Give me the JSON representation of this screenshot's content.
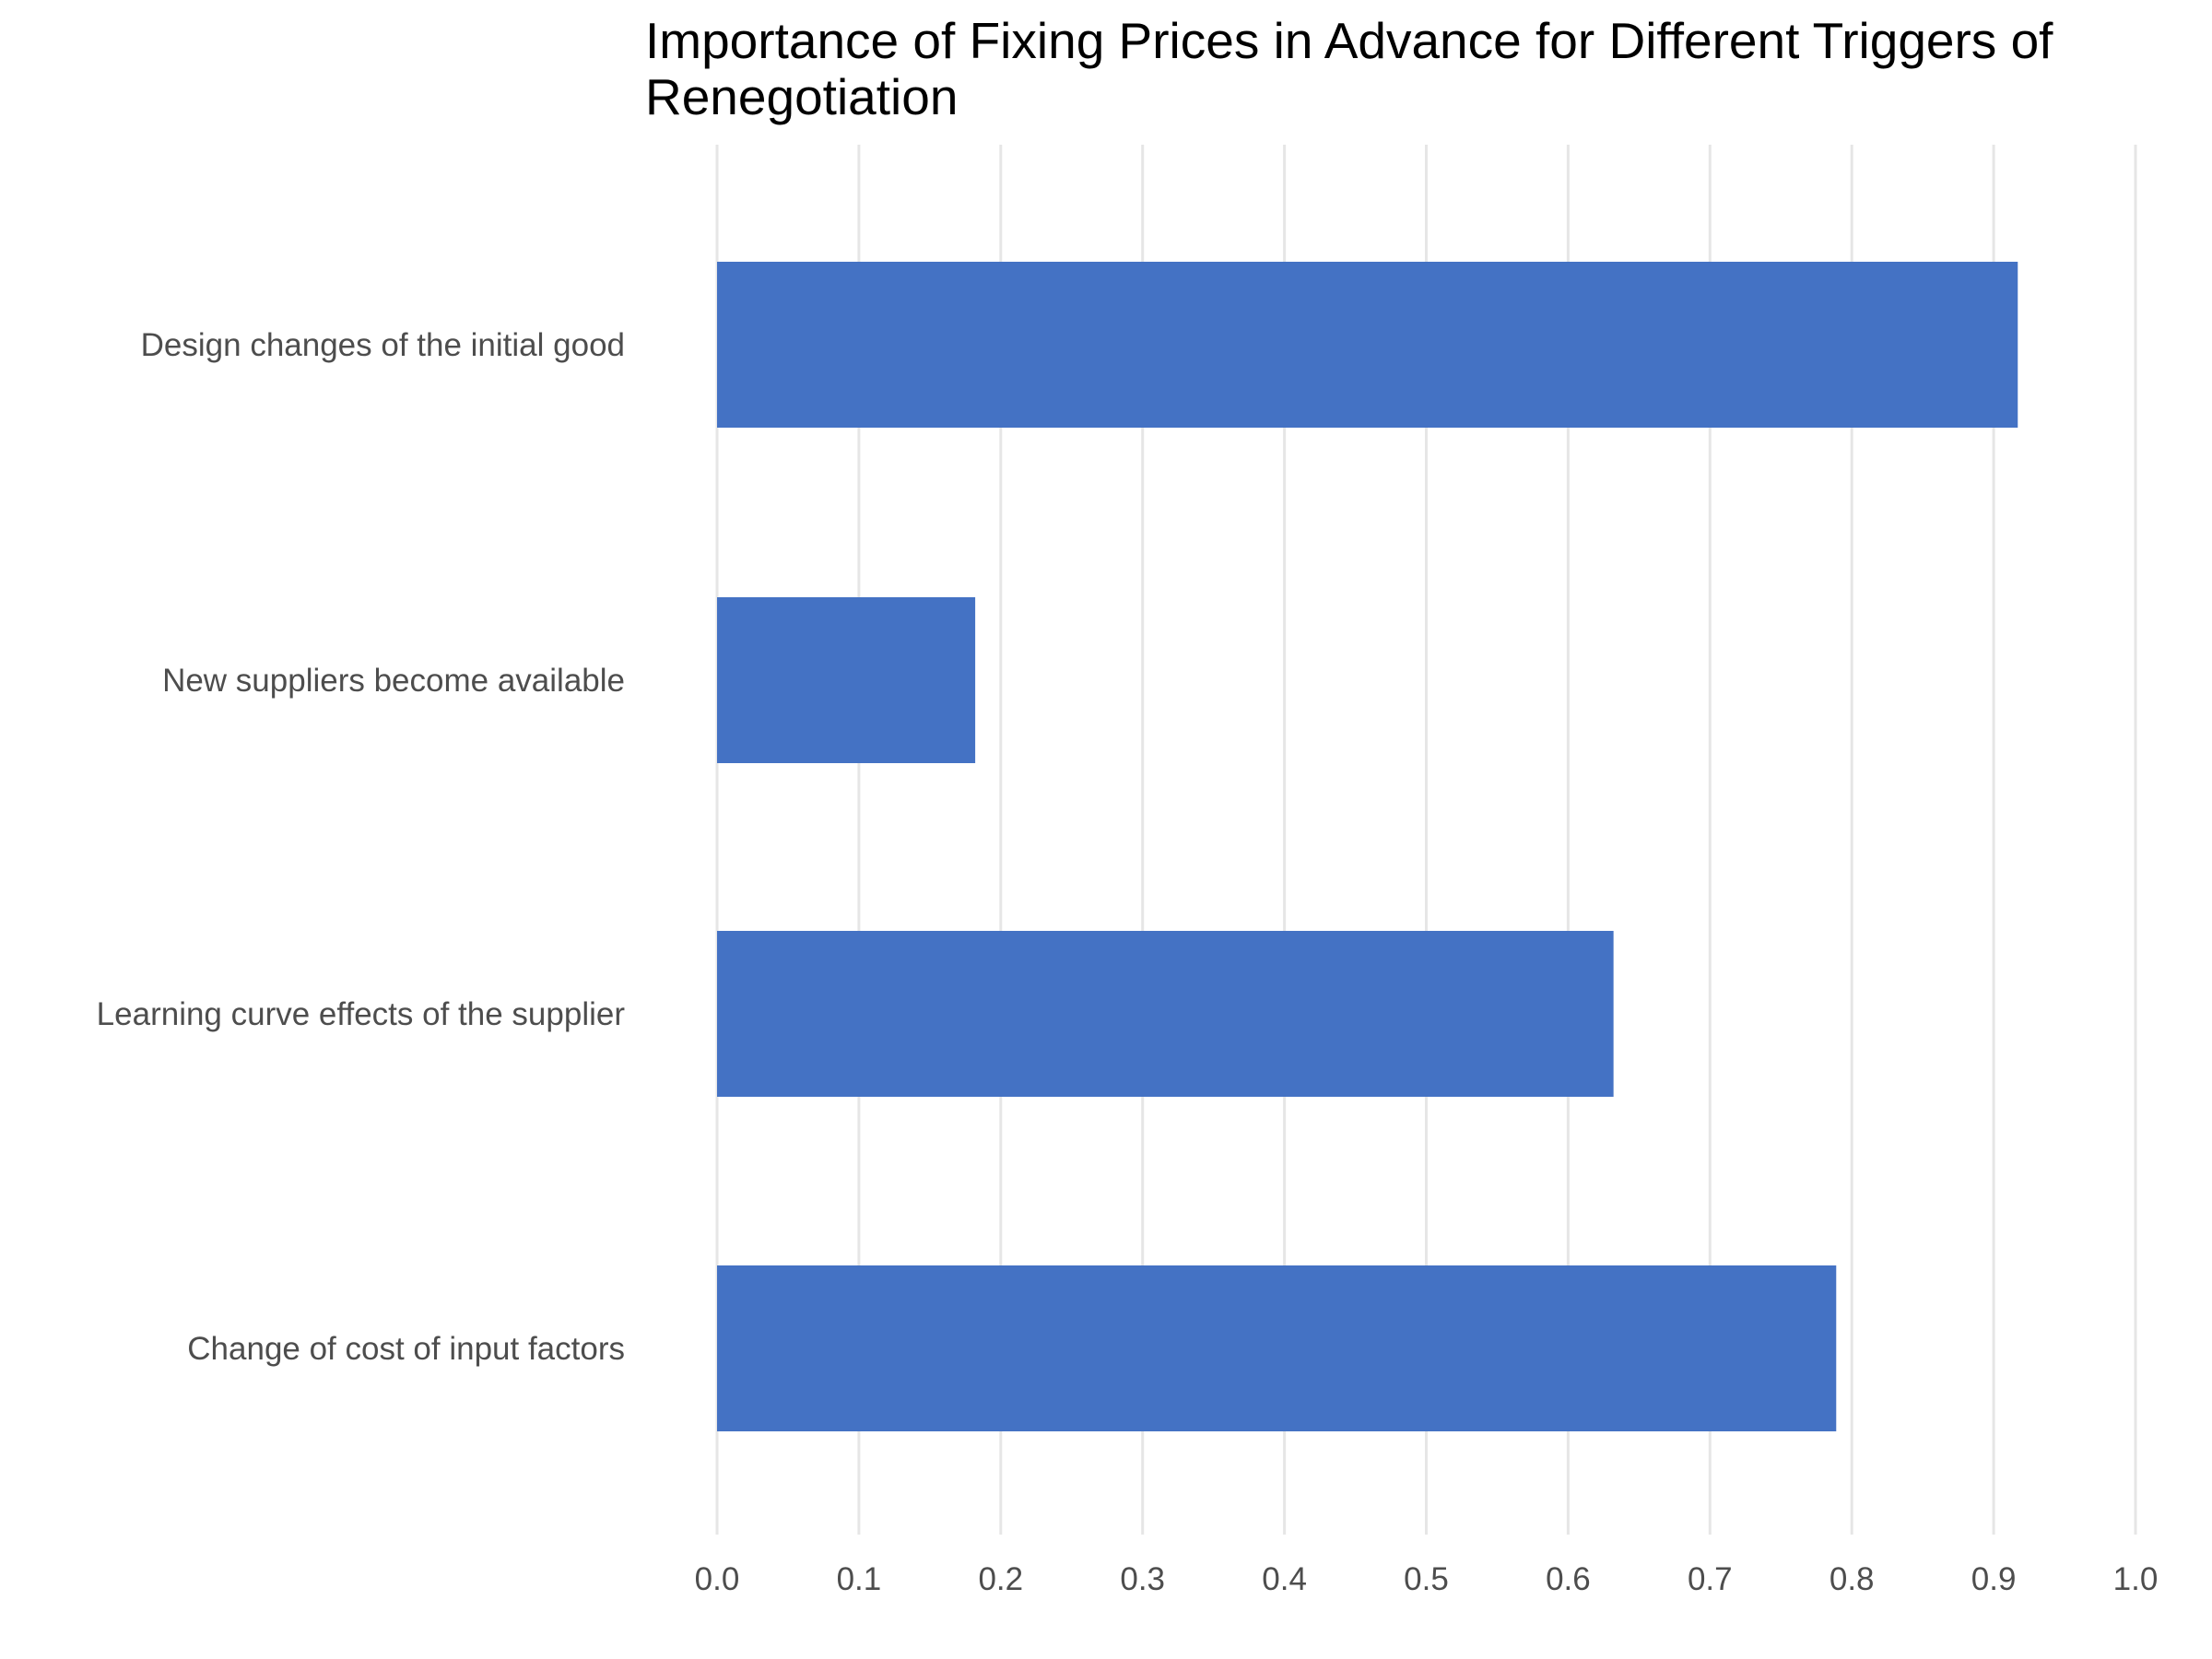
{
  "chart_data": {
    "type": "bar",
    "orientation": "horizontal",
    "title": "Importance of Fixing Prices in Advance for Different Triggers of Renegotiation",
    "title_lines": [
      "Importance of Fixing Prices in Advance for Different Triggers of",
      "Renegotiation"
    ],
    "xlabel": "",
    "ylabel": "",
    "categories": [
      "Design changes of the initial good",
      "New suppliers become available",
      "Learning curve effects of the supplier",
      "Change of cost of input factors"
    ],
    "values": [
      0.917,
      0.182,
      0.632,
      0.789
    ],
    "xlim": [
      0,
      1.0
    ],
    "x_ticks": [
      "0.0",
      "0.1",
      "0.2",
      "0.3",
      "0.4",
      "0.5",
      "0.6",
      "0.7",
      "0.8",
      "0.9",
      "1.0"
    ],
    "grid": "vertical",
    "legend": "none",
    "bar_color": "#4472C4"
  }
}
